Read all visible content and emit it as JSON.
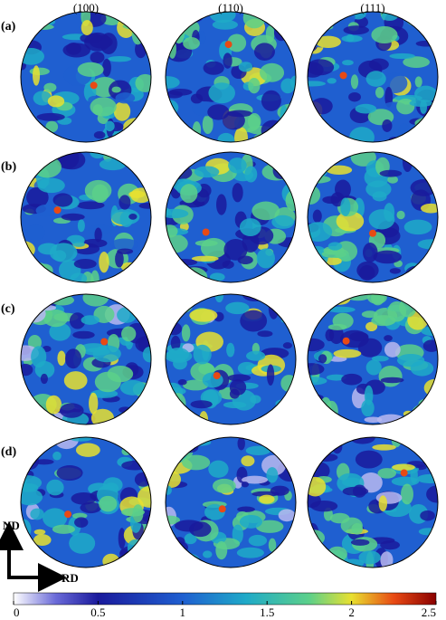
{
  "columns": [
    "(100)",
    "(110)",
    "(111)"
  ],
  "rows": [
    "(a)",
    "(b)",
    "(c)",
    "(d)"
  ],
  "axes": {
    "vertical": "ND",
    "horizontal": "RD"
  },
  "colorbar": {
    "lim": [
      0,
      2.5
    ],
    "ticks": [
      0,
      0.5,
      1,
      1.5,
      2,
      2.5
    ]
  }
}
